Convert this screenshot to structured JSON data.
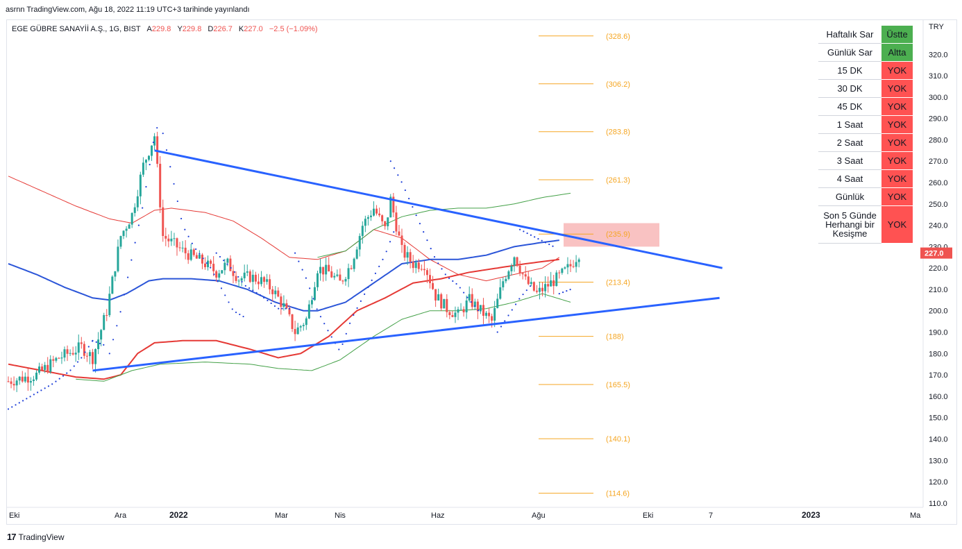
{
  "header": {
    "caption": "asrnn TradingView.com, Ağu 18, 2022 11:19 UTC+3 tarihinde yayınlandı"
  },
  "legend": {
    "symbol": "EGE GÜBRE SANAYİİ A.Ş., 1G, BIST",
    "open_label": "A",
    "open": "229.8",
    "high_label": "Y",
    "high": "229.8",
    "low_label": "D",
    "low": "226.7",
    "close_label": "K",
    "close": "227.0",
    "change": "−2.5 (−1.09%)"
  },
  "currency": "TRY",
  "last_price_badge": "227.0",
  "signal_table": [
    {
      "label": "Haftalık Sar",
      "status": "Üstte",
      "color": "#4caf50"
    },
    {
      "label": "Günlük Sar",
      "status": "Altta",
      "color": "#4caf50"
    },
    {
      "label": "15 DK",
      "status": "YOK",
      "color": "#ff5252"
    },
    {
      "label": "30 DK",
      "status": "YOK",
      "color": "#ff5252"
    },
    {
      "label": "45 DK",
      "status": "YOK",
      "color": "#ff5252"
    },
    {
      "label": "1 Saat",
      "status": "YOK",
      "color": "#ff5252"
    },
    {
      "label": "2 Saat",
      "status": "YOK",
      "color": "#ff5252"
    },
    {
      "label": "3 Saat",
      "status": "YOK",
      "color": "#ff5252"
    },
    {
      "label": "4 Saat",
      "status": "YOK",
      "color": "#ff5252"
    },
    {
      "label": "Günlük",
      "status": "YOK",
      "color": "#ff5252"
    },
    {
      "label": "Son 5 Günde Herhangi bir Kesişme",
      "status": "YOK",
      "color": "#ff5252"
    }
  ],
  "footer": {
    "brand": "TradingView"
  },
  "colors": {
    "up": "#26a69a",
    "down": "#ef5350",
    "trendline": "#2962ff",
    "ma_blue": "#2b55d8",
    "ma_red": "#e53935",
    "band_green": "#43a047",
    "fib": "#f5a623",
    "sar": "#1e3fd8",
    "zone": "#f8bbbb"
  },
  "chart_data": {
    "type": "candlestick",
    "y_axis": {
      "min": 108,
      "max": 336,
      "ticks": [
        110,
        120,
        130,
        140,
        150,
        160,
        170,
        180,
        190,
        200,
        210,
        220,
        230,
        240,
        250,
        260,
        270,
        280,
        290,
        300,
        310,
        320,
        330
      ],
      "tick_format": "0.0"
    },
    "x_axis_labels": [
      "Eki",
      "Ara",
      "2022",
      "Mar",
      "Nis",
      "Haz",
      "Ağu",
      "Eki",
      "7",
      "2023",
      "Ma"
    ],
    "x_axis_bold": [
      "2022",
      "2023"
    ],
    "fib_levels": [
      328.6,
      306.2,
      283.8,
      261.3,
      235.9,
      213.4,
      188,
      165.5,
      140.1,
      114.6
    ],
    "fib_labels": [
      "(328.6)",
      "(306.2)",
      "(283.8)",
      "(261.3)",
      "(235.9)",
      "(213.4)",
      "(188)",
      "(165.5)",
      "(140.1)",
      "(114.6)"
    ],
    "resistance_zone": {
      "top": 241,
      "bottom": 230
    },
    "trendlines": [
      {
        "name": "upper",
        "from": {
          "bar": 52,
          "price": 275
        },
        "to": {
          "bar": 254,
          "price": 220
        }
      },
      {
        "name": "lower",
        "from": {
          "bar": 30,
          "price": 172
        },
        "to": {
          "bar": 253,
          "price": 206
        }
      }
    ],
    "close_path": [
      [
        0,
        167
      ],
      [
        10,
        170
      ],
      [
        18,
        178
      ],
      [
        26,
        183
      ],
      [
        30,
        178
      ],
      [
        35,
        200
      ],
      [
        40,
        235
      ],
      [
        44,
        245
      ],
      [
        48,
        268
      ],
      [
        52,
        282
      ],
      [
        55,
        235
      ],
      [
        58,
        232
      ],
      [
        62,
        228
      ],
      [
        66,
        225
      ],
      [
        70,
        222
      ],
      [
        74,
        218
      ],
      [
        78,
        222
      ],
      [
        82,
        215
      ],
      [
        86,
        216
      ],
      [
        90,
        214
      ],
      [
        94,
        210
      ],
      [
        98,
        202
      ],
      [
        102,
        190
      ],
      [
        106,
        196
      ],
      [
        110,
        220
      ],
      [
        114,
        218
      ],
      [
        118,
        213
      ],
      [
        122,
        222
      ],
      [
        126,
        240
      ],
      [
        130,
        248
      ],
      [
        134,
        238
      ],
      [
        136,
        252
      ],
      [
        140,
        228
      ],
      [
        144,
        222
      ],
      [
        148,
        222
      ],
      [
        152,
        207
      ],
      [
        156,
        201
      ],
      [
        160,
        198
      ],
      [
        164,
        205
      ],
      [
        168,
        200
      ],
      [
        172,
        195
      ],
      [
        176,
        214
      ],
      [
        180,
        226
      ],
      [
        184,
        214
      ],
      [
        188,
        208
      ],
      [
        192,
        212
      ],
      [
        196,
        216
      ],
      [
        200,
        221
      ],
      [
        203,
        227
      ]
    ],
    "ma_blue": [
      [
        0,
        222
      ],
      [
        10,
        217
      ],
      [
        20,
        211
      ],
      [
        30,
        206
      ],
      [
        36,
        205
      ],
      [
        42,
        208
      ],
      [
        50,
        214
      ],
      [
        55,
        215
      ],
      [
        65,
        215
      ],
      [
        75,
        214
      ],
      [
        85,
        210
      ],
      [
        95,
        204
      ],
      [
        105,
        200
      ],
      [
        110,
        200
      ],
      [
        120,
        204
      ],
      [
        130,
        213
      ],
      [
        140,
        222
      ],
      [
        150,
        224
      ],
      [
        160,
        224
      ],
      [
        170,
        226
      ],
      [
        180,
        230
      ],
      [
        190,
        232
      ],
      [
        196,
        233
      ]
    ],
    "ma_red": [
      [
        0,
        263
      ],
      [
        12,
        256
      ],
      [
        24,
        249
      ],
      [
        36,
        243
      ],
      [
        44,
        241
      ],
      [
        52,
        247
      ],
      [
        58,
        248
      ],
      [
        70,
        246
      ],
      [
        80,
        242
      ],
      [
        90,
        234
      ],
      [
        100,
        225
      ],
      [
        110,
        224
      ],
      [
        120,
        228
      ],
      [
        130,
        238
      ],
      [
        140,
        234
      ],
      [
        150,
        224
      ],
      [
        160,
        217
      ],
      [
        170,
        214
      ],
      [
        180,
        217
      ],
      [
        190,
        220
      ],
      [
        196,
        225
      ]
    ],
    "ma_red_lower": [
      [
        0,
        175
      ],
      [
        12,
        172
      ],
      [
        24,
        169
      ],
      [
        34,
        168
      ],
      [
        40,
        170
      ],
      [
        46,
        180
      ],
      [
        52,
        185
      ],
      [
        62,
        186
      ],
      [
        74,
        186
      ],
      [
        86,
        182
      ],
      [
        96,
        178
      ],
      [
        104,
        180
      ],
      [
        114,
        188
      ],
      [
        124,
        200
      ],
      [
        134,
        206
      ],
      [
        144,
        213
      ],
      [
        154,
        215
      ],
      [
        164,
        218
      ],
      [
        174,
        220
      ],
      [
        184,
        222
      ],
      [
        196,
        224
      ]
    ],
    "band_green": [
      [
        24,
        168
      ],
      [
        34,
        167
      ],
      [
        44,
        172
      ],
      [
        54,
        175
      ],
      [
        70,
        176
      ],
      [
        86,
        175
      ],
      [
        96,
        173
      ],
      [
        108,
        172
      ],
      [
        118,
        177
      ],
      [
        130,
        188
      ],
      [
        140,
        196
      ],
      [
        150,
        200
      ],
      [
        160,
        200
      ],
      [
        170,
        201
      ],
      [
        180,
        204
      ],
      [
        190,
        208
      ],
      [
        200,
        204
      ]
    ],
    "band_green_upper": [
      [
        110,
        225
      ],
      [
        120,
        228
      ],
      [
        130,
        238
      ],
      [
        140,
        244
      ],
      [
        150,
        247
      ],
      [
        160,
        248
      ],
      [
        170,
        248
      ],
      [
        180,
        250
      ],
      [
        190,
        253
      ],
      [
        200,
        255
      ]
    ],
    "sar_segments": [
      [
        [
          0,
          154
        ],
        [
          8,
          160
        ],
        [
          16,
          166
        ],
        [
          22,
          172
        ],
        [
          26,
          178
        ],
        [
          30,
          186
        ]
      ],
      [
        [
          30,
          186
        ],
        [
          34,
          184
        ]
      ],
      [
        [
          36,
          180
        ],
        [
          40,
          200
        ],
        [
          44,
          225
        ],
        [
          48,
          250
        ],
        [
          52,
          282
        ],
        [
          54,
          290
        ]
      ],
      [
        [
          55,
          283
        ],
        [
          58,
          265
        ],
        [
          62,
          240
        ],
        [
          66,
          230
        ],
        [
          72,
          220
        ],
        [
          76,
          210
        ],
        [
          80,
          200
        ],
        [
          84,
          197
        ]
      ],
      [
        [
          74,
          227
        ],
        [
          80,
          219
        ],
        [
          84,
          212
        ],
        [
          90,
          207
        ],
        [
          96,
          201
        ],
        [
          100,
          201
        ]
      ],
      [
        [
          102,
          227
        ],
        [
          106,
          215
        ],
        [
          110,
          200
        ],
        [
          114,
          190
        ],
        [
          118,
          181
        ],
        [
          122,
          196
        ],
        [
          126,
          206
        ],
        [
          130,
          216
        ],
        [
          134,
          226
        ],
        [
          138,
          240
        ]
      ],
      [
        [
          136,
          270
        ],
        [
          140,
          260
        ],
        [
          144,
          248
        ],
        [
          148,
          236
        ],
        [
          152,
          224
        ],
        [
          156,
          216
        ],
        [
          160,
          212
        ],
        [
          164,
          205
        ],
        [
          168,
          199
        ]
      ],
      [
        [
          174,
          190
        ],
        [
          178,
          198
        ],
        [
          182,
          206
        ],
        [
          186,
          212
        ]
      ],
      [
        [
          182,
          238
        ],
        [
          188,
          234
        ],
        [
          194,
          230
        ]
      ],
      [
        [
          196,
          208
        ],
        [
          200,
          210
        ]
      ]
    ],
    "trend_bars": 205
  }
}
